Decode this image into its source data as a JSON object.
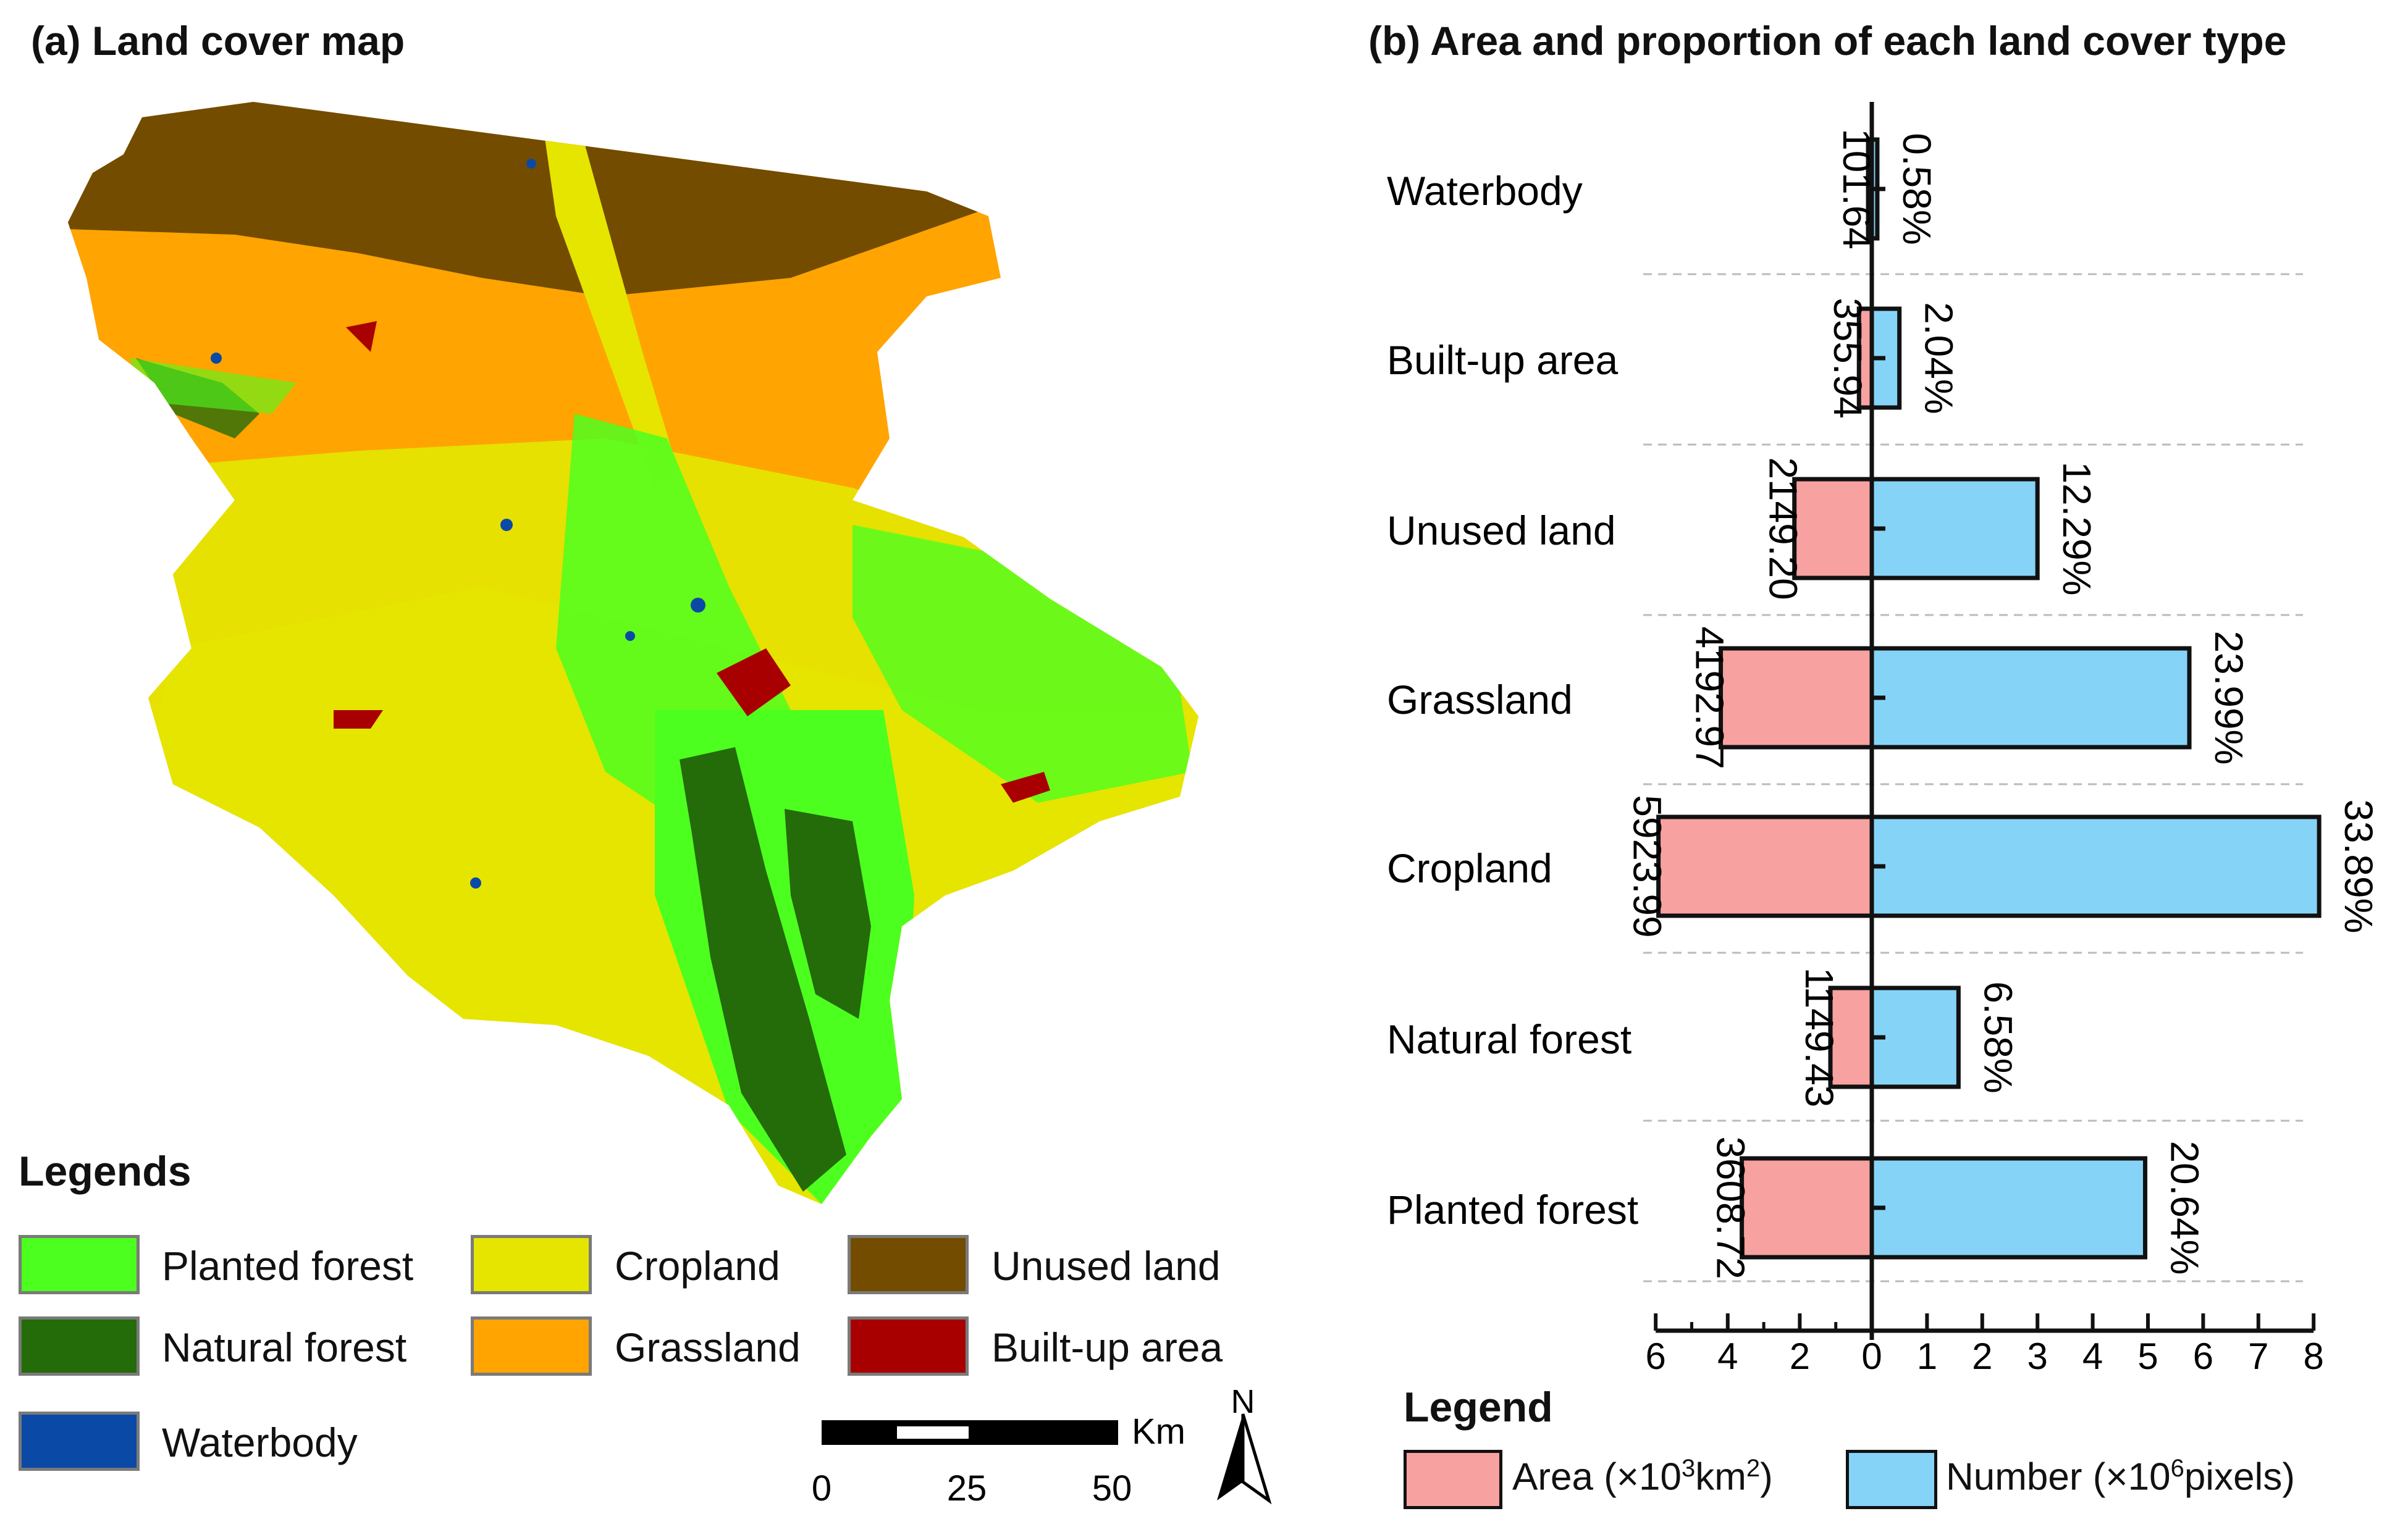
{
  "panel_a": {
    "title": "(a) Land cover map",
    "legends_title": "Legends",
    "legend": [
      {
        "label": "Planted forest",
        "color": "#4dff1f"
      },
      {
        "label": "Natural forest",
        "color": "#246b0a"
      },
      {
        "label": "Waterbody",
        "color": "#0b49a6"
      },
      {
        "label": "Cropland",
        "color": "#e5e500"
      },
      {
        "label": "Grassland",
        "color": "#ffa400"
      },
      {
        "label": "Unused land",
        "color": "#734c00"
      },
      {
        "label": "Built-up area",
        "color": "#a80000"
      }
    ],
    "scale_bar": {
      "unit": "Km",
      "ticks": [
        "0",
        "25",
        "50"
      ]
    },
    "north_label": "N"
  },
  "panel_b": {
    "title": "(b) Area and proportion of each land cover type",
    "legend_title": "Legend",
    "legend_area": {
      "label_pre": "Area (×10",
      "label_sup": "3",
      "label_post": "km",
      "label_sup2": "2",
      "label_end": ")",
      "color": "#f7a1a1"
    },
    "legend_number": {
      "label_pre": "Number (×10",
      "label_sup": "6",
      "label_post": "pixels)",
      "color": "#86d3f8"
    }
  },
  "chart_data": {
    "type": "bar",
    "orientation": "horizontal-diverging",
    "categories": [
      "Waterbody",
      "Built-up area",
      "Unused land",
      "Grassland",
      "Cropland",
      "Natural forest",
      "Planted forest"
    ],
    "series": [
      {
        "name": "Area (×10³km²)",
        "values": [
          0.10164,
          0.35594,
          2.1492,
          4.19297,
          5.92399,
          1.14943,
          3.60872
        ],
        "color": "#f7a1a1",
        "side": "left"
      },
      {
        "name": "Number (×10⁶pixels)",
        "values": [
          0.1,
          0.5,
          3.0,
          5.75,
          8.1,
          1.57,
          4.95
        ],
        "color": "#86d3f8",
        "side": "right"
      }
    ],
    "area_labels": [
      "101.64",
      "355.94",
      "2149.20",
      "4192.97",
      "5923.99",
      "1149.43",
      "3608.72"
    ],
    "percent_labels": [
      "0.58%",
      "2.04%",
      "12.29%",
      "23.99%",
      "33.89%",
      "6.58%",
      "20.64%"
    ],
    "x_ticks": [
      "6",
      "4",
      "2",
      "0",
      "1",
      "2",
      "3",
      "4",
      "5",
      "6",
      "7",
      "8"
    ],
    "xlim_left": [
      6,
      0
    ],
    "xlim_right": [
      0,
      8
    ],
    "grid": "dashed horizontal separators"
  }
}
